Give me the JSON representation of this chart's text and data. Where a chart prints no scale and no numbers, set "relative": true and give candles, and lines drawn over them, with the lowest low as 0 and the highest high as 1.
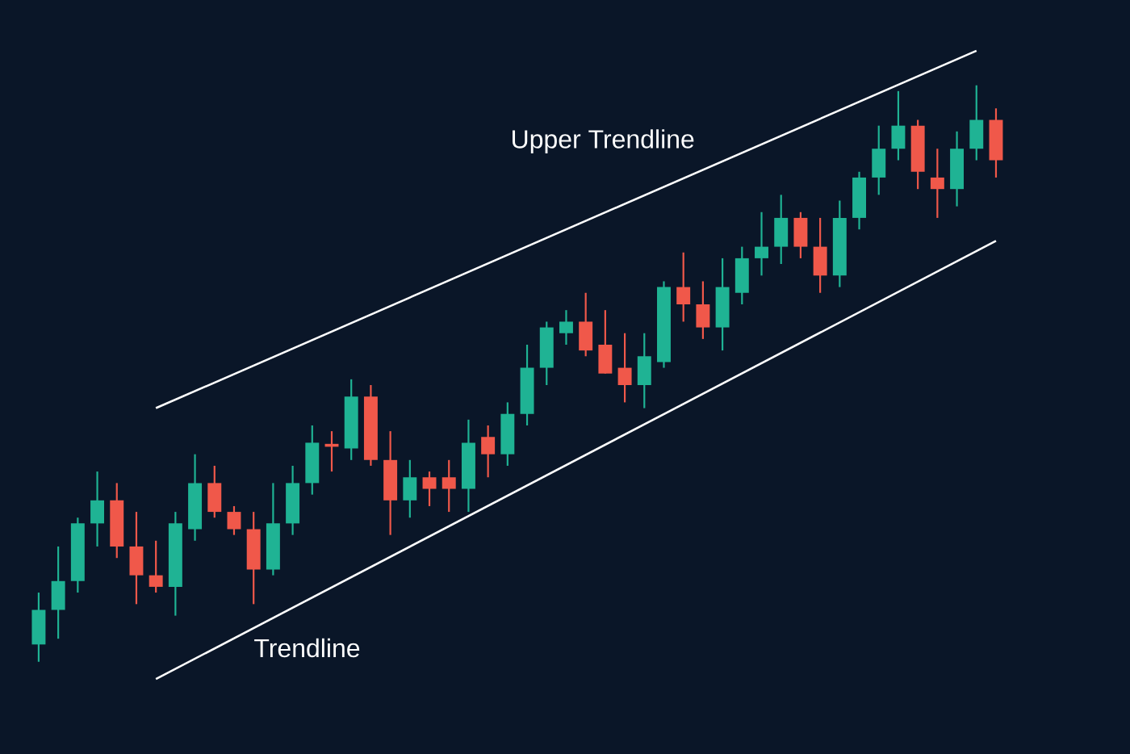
{
  "chart_data": {
    "type": "candlestick",
    "relative": true,
    "categories": [
      null,
      null,
      null,
      null,
      null,
      null,
      null,
      null,
      null,
      null,
      null,
      null,
      null,
      null,
      null,
      null,
      null,
      null,
      null,
      null,
      null,
      null,
      null,
      null,
      null,
      null,
      null,
      null,
      null,
      null,
      null,
      null,
      null,
      null,
      null,
      null,
      null,
      null,
      null,
      null,
      null,
      null,
      null,
      null,
      null,
      null,
      null,
      null,
      null,
      null
    ],
    "ohlc": [
      [
        0.03,
        0.12,
        0.0,
        0.09
      ],
      [
        0.09,
        0.2,
        0.04,
        0.14
      ],
      [
        0.14,
        0.25,
        0.12,
        0.24
      ],
      [
        0.24,
        0.33,
        0.2,
        0.28
      ],
      [
        0.28,
        0.31,
        0.18,
        0.2
      ],
      [
        0.2,
        0.26,
        0.1,
        0.15
      ],
      [
        0.15,
        0.21,
        0.12,
        0.13
      ],
      [
        0.13,
        0.26,
        0.08,
        0.24
      ],
      [
        0.23,
        0.36,
        0.21,
        0.31
      ],
      [
        0.31,
        0.34,
        0.25,
        0.26
      ],
      [
        0.26,
        0.27,
        0.22,
        0.23
      ],
      [
        0.23,
        0.26,
        0.1,
        0.16
      ],
      [
        0.16,
        0.31,
        0.15,
        0.24
      ],
      [
        0.24,
        0.34,
        0.22,
        0.31
      ],
      [
        0.31,
        0.41,
        0.29,
        0.38
      ],
      [
        0.378,
        0.4,
        0.33,
        0.373
      ],
      [
        0.37,
        0.49,
        0.35,
        0.46
      ],
      [
        0.46,
        0.48,
        0.34,
        0.35
      ],
      [
        0.35,
        0.4,
        0.22,
        0.28
      ],
      [
        0.28,
        0.35,
        0.25,
        0.32
      ],
      [
        0.32,
        0.33,
        0.27,
        0.3
      ],
      [
        0.32,
        0.35,
        0.26,
        0.3
      ],
      [
        0.3,
        0.42,
        0.26,
        0.38
      ],
      [
        0.39,
        0.41,
        0.32,
        0.36
      ],
      [
        0.36,
        0.45,
        0.34,
        0.43
      ],
      [
        0.43,
        0.55,
        0.41,
        0.51
      ],
      [
        0.51,
        0.59,
        0.48,
        0.58
      ],
      [
        0.57,
        0.61,
        0.55,
        0.59
      ],
      [
        0.59,
        0.64,
        0.53,
        0.54
      ],
      [
        0.55,
        0.61,
        0.5,
        0.5
      ],
      [
        0.51,
        0.57,
        0.45,
        0.48
      ],
      [
        0.48,
        0.57,
        0.44,
        0.53
      ],
      [
        0.52,
        0.66,
        0.51,
        0.65
      ],
      [
        0.65,
        0.71,
        0.59,
        0.62
      ],
      [
        0.62,
        0.66,
        0.56,
        0.58
      ],
      [
        0.58,
        0.7,
        0.54,
        0.65
      ],
      [
        0.64,
        0.72,
        0.62,
        0.7
      ],
      [
        0.7,
        0.78,
        0.67,
        0.72
      ],
      [
        0.72,
        0.81,
        0.69,
        0.77
      ],
      [
        0.77,
        0.78,
        0.7,
        0.72
      ],
      [
        0.72,
        0.77,
        0.64,
        0.67
      ],
      [
        0.67,
        0.8,
        0.65,
        0.77
      ],
      [
        0.77,
        0.85,
        0.75,
        0.84
      ],
      [
        0.84,
        0.93,
        0.81,
        0.89
      ],
      [
        0.89,
        0.99,
        0.87,
        0.93
      ],
      [
        0.93,
        0.94,
        0.82,
        0.85
      ],
      [
        0.84,
        0.89,
        0.77,
        0.82
      ],
      [
        0.82,
        0.92,
        0.79,
        0.89
      ],
      [
        0.89,
        1.0,
        0.87,
        0.94
      ],
      [
        0.94,
        0.96,
        0.84,
        0.87
      ]
    ],
    "colors": [
      "#1fb394",
      "#1fb394",
      "#1fb394",
      "#1fb394",
      "#f0584a",
      "#f0584a",
      "#f0584a",
      "#1fb394",
      "#1fb394",
      "#f0584a",
      "#f0584a",
      "#f0584a",
      "#1fb394",
      "#1fb394",
      "#1fb394",
      "#f0584a",
      "#1fb394",
      "#f0584a",
      "#f0584a",
      "#1fb394",
      "#f0584a",
      "#f0584a",
      "#1fb394",
      "#f0584a",
      "#1fb394",
      "#1fb394",
      "#1fb394",
      "#1fb394",
      "#f0584a",
      "#f0584a",
      "#f0584a",
      "#1fb394",
      "#1fb394",
      "#f0584a",
      "#f0584a",
      "#1fb394",
      "#1fb394",
      "#1fb394",
      "#1fb394",
      "#f0584a",
      "#f0584a",
      "#1fb394",
      "#1fb394",
      "#1fb394",
      "#1fb394",
      "#f0584a",
      "#f0584a",
      "#1fb394",
      "#1fb394",
      "#f0584a"
    ],
    "series": [
      {
        "type": "line",
        "name": "Upper Trendline",
        "color": "#ffffff",
        "values": [
          null,
          null,
          null,
          null,
          null,
          null,
          0.44,
          null,
          null,
          null,
          null,
          null,
          null,
          null,
          null,
          null,
          null,
          null,
          null,
          null,
          null,
          null,
          null,
          null,
          null,
          null,
          null,
          null,
          null,
          null,
          null,
          null,
          null,
          null,
          null,
          null,
          null,
          null,
          null,
          null,
          null,
          null,
          null,
          null,
          null,
          null,
          null,
          null,
          1.06,
          null
        ]
      },
      {
        "type": "line",
        "name": "Trendline",
        "color": "#ffffff",
        "values": [
          null,
          null,
          null,
          null,
          null,
          null,
          -0.03,
          null,
          null,
          null,
          null,
          null,
          null,
          null,
          null,
          null,
          null,
          null,
          null,
          null,
          null,
          null,
          null,
          null,
          null,
          null,
          null,
          null,
          null,
          null,
          null,
          null,
          null,
          null,
          null,
          null,
          null,
          null,
          null,
          null,
          null,
          null,
          null,
          null,
          null,
          null,
          null,
          null,
          null,
          0.73
        ]
      }
    ]
  }
}
